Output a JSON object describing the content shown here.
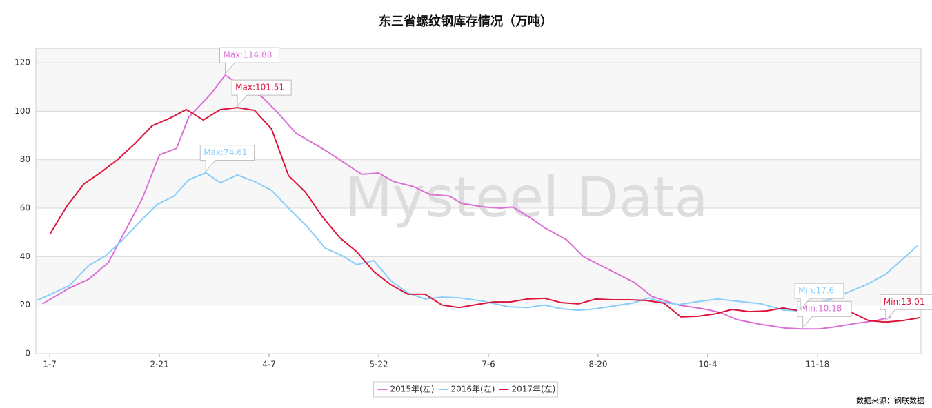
{
  "chart_data": {
    "type": "line",
    "title": "东三省螺纹钢库存情况（万吨）",
    "watermark": "Mysteel Data",
    "source": "数据来源：钢联数据",
    "xlim": [
      1.3,
      364.5
    ],
    "xticks": [
      {
        "value": 7,
        "label": "1-7"
      },
      {
        "value": 52,
        "label": "2-21"
      },
      {
        "value": 97,
        "label": "4-7"
      },
      {
        "value": 142,
        "label": "5-22"
      },
      {
        "value": 187,
        "label": "7-6"
      },
      {
        "value": 232,
        "label": "8-20"
      },
      {
        "value": 277,
        "label": "10-4"
      },
      {
        "value": 322,
        "label": "11-18"
      }
    ],
    "ylim": [
      0,
      126
    ],
    "yticks": [
      0,
      20,
      40,
      60,
      80,
      100,
      120
    ],
    "grid": true,
    "legend": "bottom",
    "series": [
      {
        "name": "2015年(左)",
        "color": "#da70d6",
        "max_label": "Max:114.88",
        "min_label": "Min:10.18",
        "x": [
          4,
          15,
          23,
          31,
          45,
          52,
          59,
          64,
          73,
          79,
          87,
          94,
          100,
          108,
          121,
          135,
          142,
          148,
          156,
          163,
          171,
          176,
          185,
          192,
          197,
          205,
          210,
          219,
          226,
          233,
          247,
          254,
          265,
          275,
          282,
          289,
          298,
          309,
          316,
          323,
          329,
          338,
          346,
          352
        ],
        "values": [
          20.5,
          27,
          30.7,
          37.5,
          64,
          82,
          84.7,
          97.5,
          107,
          114.88,
          109.5,
          106,
          100,
          91,
          83.3,
          74,
          74.5,
          71,
          69,
          65.7,
          65,
          62,
          60.5,
          60,
          60.5,
          55.5,
          52,
          47,
          40,
          36.4,
          29.3,
          23.6,
          20,
          18.5,
          17,
          14,
          12.2,
          10.5,
          10.18,
          10.2,
          11,
          12.5,
          13.6,
          15
        ]
      },
      {
        "name": "2016年(左)",
        "color": "#87cefa",
        "max_label": "Max:74.61",
        "min_label": "Min:17.6",
        "x": [
          2,
          15,
          23,
          30,
          37,
          45,
          51,
          58,
          64,
          71,
          77,
          84,
          91,
          98,
          105,
          113,
          120,
          127,
          133,
          140,
          147,
          154,
          161,
          168,
          175,
          185,
          195,
          203,
          210,
          217,
          224,
          231,
          246,
          253,
          258,
          265,
          272,
          281,
          292,
          299,
          308,
          315,
          322,
          329,
          342,
          350,
          357,
          363
        ],
        "values": [
          22,
          28,
          36.4,
          40.4,
          47,
          55.5,
          61.5,
          65,
          71.7,
          74.61,
          70.5,
          73.7,
          71,
          67.4,
          60,
          52,
          43.5,
          40.4,
          36.7,
          38.4,
          30,
          25,
          22.5,
          23.3,
          23,
          21.6,
          19.3,
          19,
          20,
          18.5,
          17.9,
          18.5,
          20.8,
          23,
          21.3,
          20.2,
          21.3,
          22.5,
          21.3,
          20.5,
          18,
          17.6,
          20.8,
          23,
          28.4,
          32.7,
          39,
          44.4
        ]
      },
      {
        "name": "2017年(左)",
        "color": "#dc143c",
        "max_label": "Max:101.51",
        "min_label": "Min:13.01",
        "x": [
          7,
          14,
          21,
          28,
          35,
          42,
          49,
          56,
          63,
          70,
          77,
          84,
          91,
          98,
          105,
          112,
          119,
          126,
          133,
          140,
          147,
          154,
          161,
          168,
          175,
          182,
          189,
          196,
          203,
          210,
          217,
          224,
          231,
          238,
          245,
          252,
          259,
          266,
          273,
          280,
          287,
          294,
          301,
          308,
          315,
          322,
          329,
          336,
          343,
          350,
          357,
          364
        ],
        "values": [
          49.2,
          60.8,
          70,
          74.8,
          80.2,
          86.7,
          94,
          97,
          100.7,
          96.4,
          100.7,
          101.51,
          100.4,
          92.7,
          73.4,
          66.5,
          56.3,
          47.8,
          42,
          33.8,
          28.4,
          24.5,
          24.5,
          20,
          19,
          20.2,
          21.3,
          21.3,
          22.5,
          22.8,
          21,
          20.5,
          22.5,
          22.2,
          22.2,
          21.9,
          20.8,
          15.1,
          15.4,
          16.4,
          18.2,
          17.3,
          17.6,
          18.8,
          17.6,
          18.2,
          17.9,
          17,
          13.6,
          13.01,
          13.6,
          14.8
        ]
      }
    ]
  }
}
